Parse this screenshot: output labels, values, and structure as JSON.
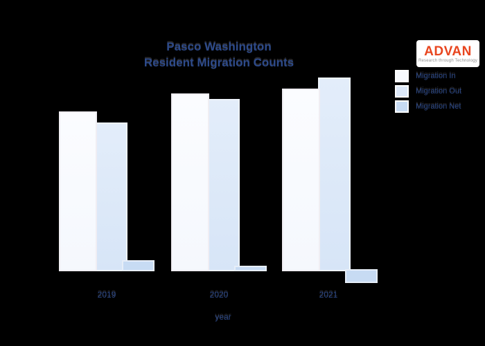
{
  "title": {
    "line1": "Pasco Washington",
    "line2": "Resident Migration Counts"
  },
  "logo": {
    "name": "ADVAN",
    "tagline": "Research through Technology",
    "name_color": "#e8451e"
  },
  "legend": {
    "items": [
      {
        "label": "Migration In",
        "color": "#f8fafe"
      },
      {
        "label": "Migration Out",
        "color": "#dce8f8"
      },
      {
        "label": "Migration Net",
        "color": "#c7dbf3"
      }
    ]
  },
  "x_axis": {
    "title": "year"
  },
  "colors": {
    "background": "#000000",
    "text": "#2d4a8a",
    "bar_in": "#f8fafe",
    "bar_out": "#dce8f8",
    "bar_net": "#c7dbf3"
  },
  "chart_data": {
    "type": "bar",
    "title": "Pasco Washington Resident Migration Counts",
    "xlabel": "year",
    "ylabel": "",
    "categories": [
      "2019",
      "2020",
      "2021"
    ],
    "series": [
      {
        "name": "Migration In",
        "values": [
          231,
          257,
          264
        ]
      },
      {
        "name": "Migration Out",
        "values": [
          215,
          249,
          280
        ]
      },
      {
        "name": "Migration Net",
        "values": [
          16,
          8,
          -16
        ]
      }
    ],
    "ylim": [
      -20,
      300
    ],
    "units": "relative units (no y-axis scale shown in figure)",
    "y_axis_visible": false,
    "grid": false,
    "legend_position": "top-right"
  }
}
